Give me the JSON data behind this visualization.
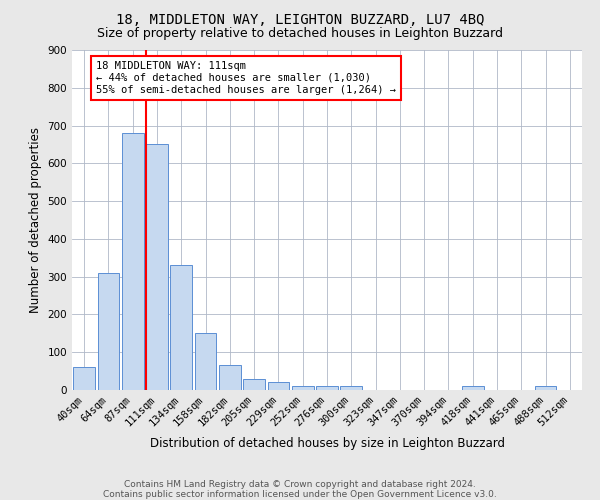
{
  "title1": "18, MIDDLETON WAY, LEIGHTON BUZZARD, LU7 4BQ",
  "title2": "Size of property relative to detached houses in Leighton Buzzard",
  "xlabel": "Distribution of detached houses by size in Leighton Buzzard",
  "ylabel": "Number of detached properties",
  "bin_labels": [
    "40sqm",
    "64sqm",
    "87sqm",
    "111sqm",
    "134sqm",
    "158sqm",
    "182sqm",
    "205sqm",
    "229sqm",
    "252sqm",
    "276sqm",
    "300sqm",
    "323sqm",
    "347sqm",
    "370sqm",
    "394sqm",
    "418sqm",
    "441sqm",
    "465sqm",
    "488sqm",
    "512sqm"
  ],
  "bar_values": [
    60,
    310,
    680,
    650,
    330,
    150,
    65,
    30,
    20,
    10,
    10,
    10,
    0,
    0,
    0,
    0,
    10,
    0,
    0,
    10,
    0
  ],
  "bar_color": "#c6d9f0",
  "bar_edge_color": "#5b8fd4",
  "highlight_bar_index": 3,
  "red_line_index": 3,
  "annotation_line1": "18 MIDDLETON WAY: 111sqm",
  "annotation_line2": "← 44% of detached houses are smaller (1,030)",
  "annotation_line3": "55% of semi-detached houses are larger (1,264) →",
  "annotation_box_color": "white",
  "annotation_box_edge_color": "red",
  "ylim": [
    0,
    900
  ],
  "yticks": [
    0,
    100,
    200,
    300,
    400,
    500,
    600,
    700,
    800,
    900
  ],
  "footer1": "Contains HM Land Registry data © Crown copyright and database right 2024.",
  "footer2": "Contains public sector information licensed under the Open Government Licence v3.0.",
  "title1_fontsize": 10,
  "title2_fontsize": 9,
  "xlabel_fontsize": 8.5,
  "ylabel_fontsize": 8.5,
  "tick_fontsize": 7.5,
  "annotation_fontsize": 7.5,
  "footer_fontsize": 6.5,
  "background_color": "#e8e8e8",
  "plot_bg_color": "white",
  "grid_color": "#b0b8c8"
}
